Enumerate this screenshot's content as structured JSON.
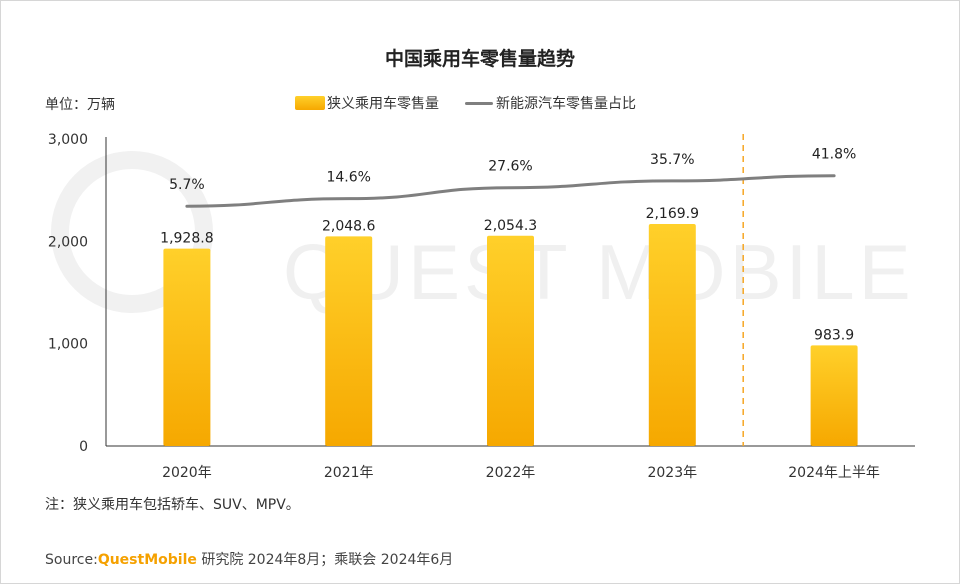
{
  "title": "中国乘用车零售量趋势",
  "unit_label": "单位：万辆",
  "legend": {
    "bar": "狭义乘用车零售量",
    "line": "新能源汽车零售量占比"
  },
  "note": "注：狭义乘用车包括轿车、SUV、MPV。",
  "source": {
    "prefix": "Source:",
    "brand": "QuestMobile",
    "rest": " 研究院 2024年8月；乘联会 2024年6月"
  },
  "watermark": "QUEST MOBILE",
  "colors": {
    "bar_top": "#FFD02A",
    "bar_bottom": "#F6A800",
    "line": "#7f7f7f",
    "divider": "#F5A623",
    "brand": "#F5A100"
  },
  "chart_data": {
    "type": "bar",
    "categories": [
      "2020年",
      "2021年",
      "2022年",
      "2023年",
      "2024年上半年"
    ],
    "series": [
      {
        "name": "狭义乘用车零售量",
        "type": "bar",
        "values": [
          1928.8,
          2048.6,
          2054.3,
          2169.9,
          983.9
        ],
        "labels": [
          "1,928.8",
          "2,048.6",
          "2,054.3",
          "2,169.9",
          "983.9"
        ]
      },
      {
        "name": "新能源汽车零售量占比",
        "type": "line",
        "values": [
          5.7,
          14.6,
          27.6,
          35.7,
          41.8
        ],
        "labels": [
          "5.7%",
          "14.6%",
          "27.6%",
          "35.7%",
          "41.8%"
        ]
      }
    ],
    "ylim": [
      0,
      3000
    ],
    "yticks": [
      0,
      1000,
      2000,
      3000
    ],
    "ytick_labels": [
      "0",
      "1,000",
      "2,000",
      "3,000"
    ],
    "divider_between": [
      "2023年",
      "2024年上半年"
    ]
  }
}
